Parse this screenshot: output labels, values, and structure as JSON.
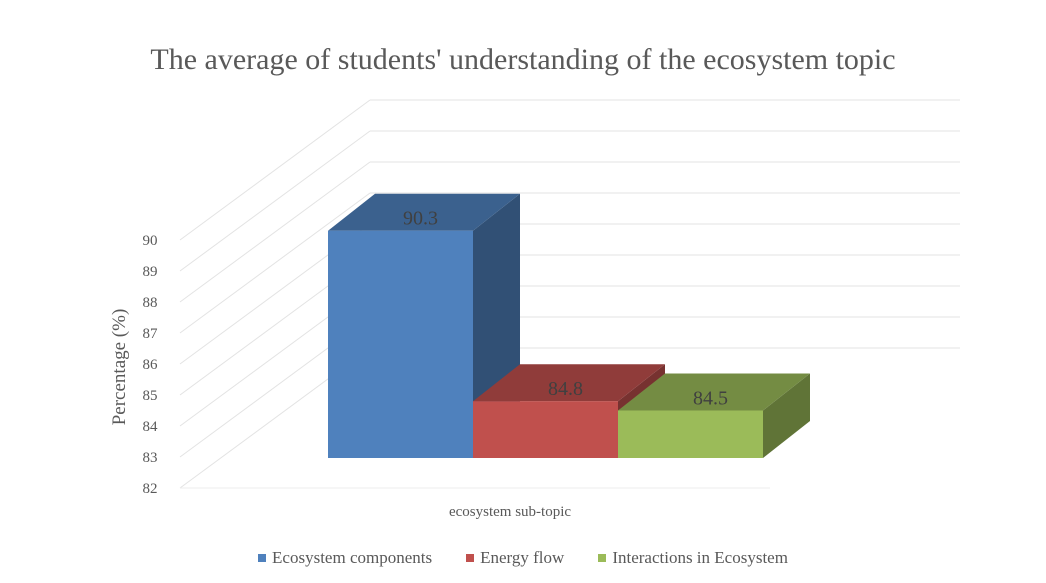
{
  "chart_data": {
    "type": "bar",
    "title": "The average of students' understanding of the ecosystem topic",
    "xlabel": "ecosystem sub-topic",
    "ylabel": "Percentage (%)",
    "ylim": [
      82,
      90
    ],
    "yticks": [
      "90",
      "89",
      "88",
      "87",
      "86",
      "85",
      "84",
      "83",
      "82"
    ],
    "grid": true,
    "legend_position": "bottom",
    "three_d": true,
    "series": [
      {
        "name": "Ecosystem components",
        "value": 90.3,
        "label": "90.3",
        "color": "#4f81bd"
      },
      {
        "name": "Energy flow",
        "value": 84.8,
        "label": "84.8",
        "color": "#c0504d"
      },
      {
        "name": "Interactions in Ecosystem",
        "value": 84.5,
        "label": "84.5",
        "color": "#9bbb59"
      }
    ]
  }
}
